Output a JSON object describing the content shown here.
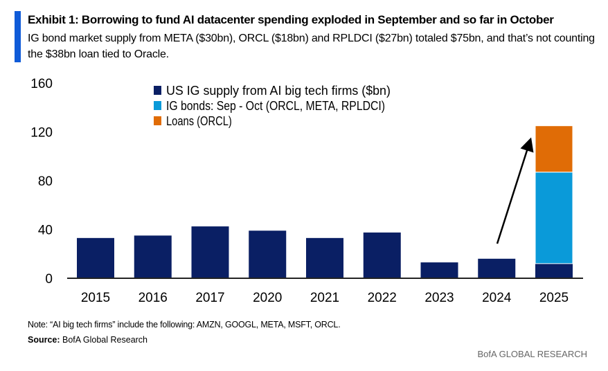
{
  "header": {
    "title": "Exhibit 1:  Borrowing to fund AI datacenter spending exploded in September and so far in October",
    "subtitle": "IG bond market supply from META ($30bn), ORCL ($18bn) and RPLDCI ($27bn) totaled $75bn, and that’s not counting the $38bn loan tied to Oracle."
  },
  "chart_data": {
    "type": "bar",
    "stacked": true,
    "categories": [
      "2015",
      "2016",
      "2017",
      "2020",
      "2021",
      "2022",
      "2023",
      "2024",
      "2025"
    ],
    "series": [
      {
        "name": "US IG supply from AI big tech firms ($bn)",
        "color": "#0a1f64",
        "values": [
          33,
          35,
          42.5,
          39,
          33,
          37.5,
          13,
          16,
          12
        ]
      },
      {
        "name": "IG bonds: Sep - Oct (ORCL, META, RPLDCI)",
        "color": "#0a9ad9",
        "values": [
          0,
          0,
          0,
          0,
          0,
          0,
          0,
          0,
          75
        ]
      },
      {
        "name": "Loans (ORCL)",
        "color": "#e06c06",
        "values": [
          0,
          0,
          0,
          0,
          0,
          0,
          0,
          0,
          38
        ]
      }
    ],
    "ylim": [
      0,
      160
    ],
    "yticks": [
      0,
      40,
      80,
      120,
      160
    ],
    "grid": false,
    "legend": "top-left",
    "annotation": "arrow pointing up toward 2025 bar"
  },
  "footer": {
    "note": "Note: “AI big tech firms” include the following: AMZN, GOOGL, META, MSFT, ORCL.",
    "source_label": "Source:",
    "source": " BofA Global Research",
    "brand": "BofA GLOBAL RESEARCH"
  }
}
